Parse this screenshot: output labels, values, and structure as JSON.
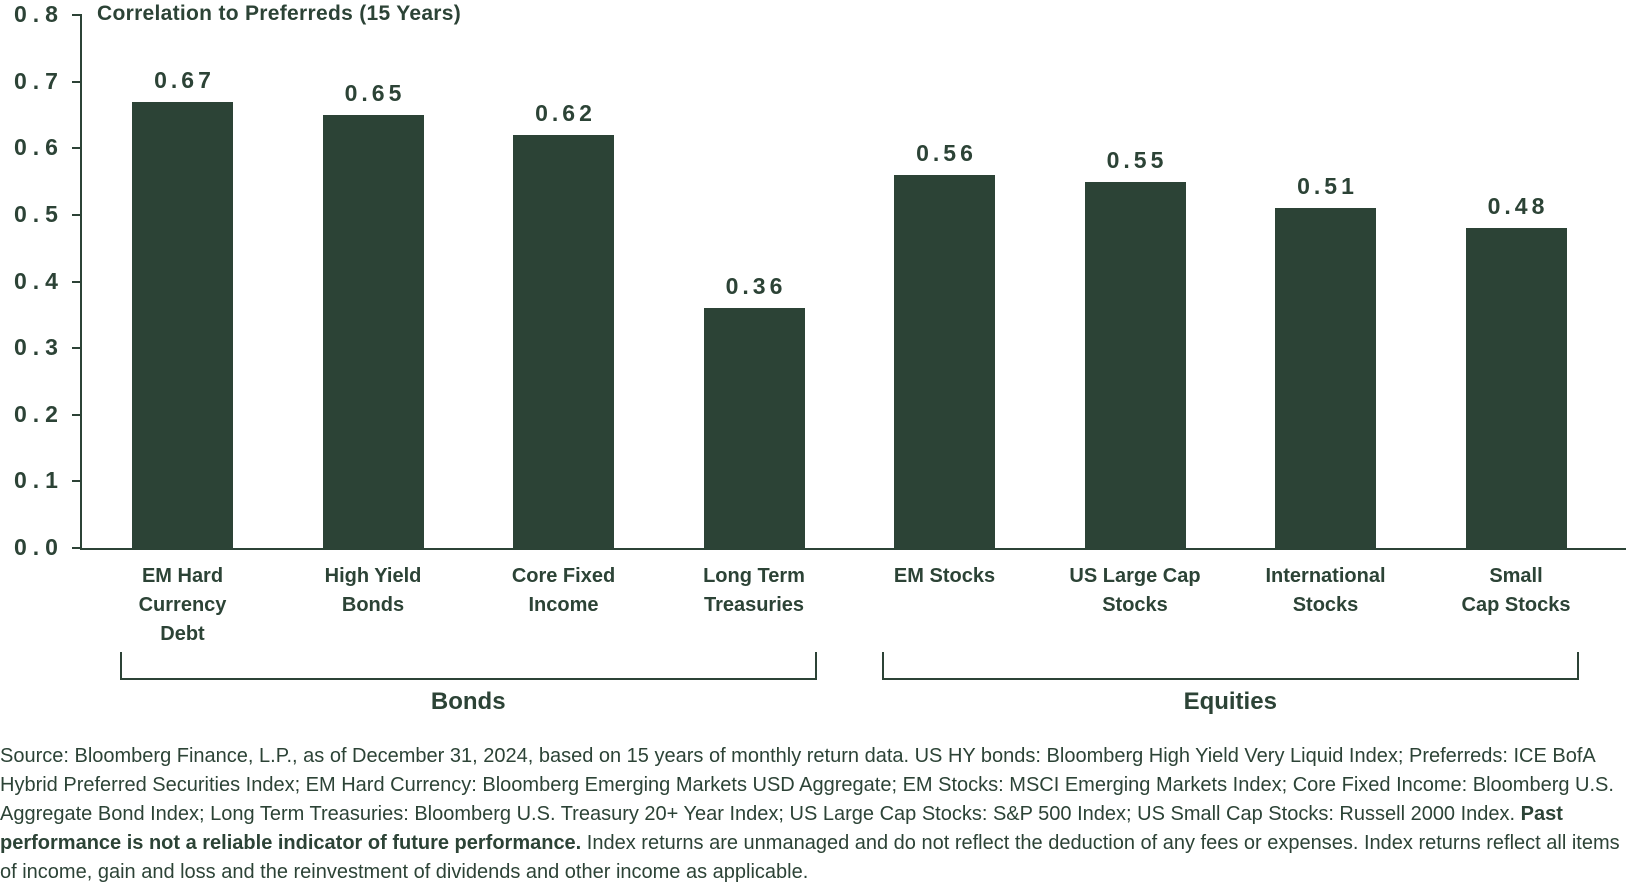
{
  "chart_data": {
    "type": "bar",
    "title": "Correlation to Preferreds (15 Years)",
    "categories": [
      {
        "name": "EM Hard Currency Debt",
        "lines": [
          "EM Hard",
          "Currency",
          "Debt"
        ]
      },
      {
        "name": "High Yield Bonds",
        "lines": [
          "High Yield",
          "Bonds"
        ]
      },
      {
        "name": "Core Fixed Income",
        "lines": [
          "Core Fixed",
          "Income"
        ]
      },
      {
        "name": "Long Term Treasuries",
        "lines": [
          "Long Term",
          "Treasuries"
        ]
      },
      {
        "name": "EM Stocks",
        "lines": [
          "EM Stocks"
        ]
      },
      {
        "name": "US Large Cap Stocks",
        "lines": [
          "US Large Cap",
          "Stocks"
        ]
      },
      {
        "name": "International Stocks",
        "lines": [
          "International",
          "Stocks"
        ]
      },
      {
        "name": "Small Cap Stocks",
        "lines": [
          "Small",
          "Cap Stocks"
        ]
      }
    ],
    "values": [
      0.67,
      0.65,
      0.62,
      0.36,
      0.56,
      0.55,
      0.51,
      0.48
    ],
    "value_labels": [
      "0.67",
      "0.65",
      "0.62",
      "0.36",
      "0.56",
      "0.55",
      "0.51",
      "0.48"
    ],
    "groups": [
      {
        "label": "Bonds",
        "start": 0,
        "end": 3
      },
      {
        "label": "Equities",
        "start": 4,
        "end": 7
      }
    ],
    "ylim": [
      0,
      0.8
    ],
    "ytick_labels": [
      "0.0",
      "0.1",
      "0.2",
      "0.3",
      "0.4",
      "0.5",
      "0.6",
      "0.7",
      "0.8"
    ],
    "grid": false,
    "legend": "none",
    "xlabel": "",
    "ylabel": "",
    "colors": {
      "bar": "#2c4336",
      "text": "#2c4336",
      "axis": "#2c4336",
      "background": "#ffffff"
    }
  },
  "footnote": {
    "part1": "Source: Bloomberg Finance, L.P., as of December 31, 2024, based on 15 years of monthly return data. US HY bonds: Bloomberg High Yield Very Liquid Index; Preferreds: ICE BofA Hybrid Preferred Securities Index; EM Hard Currency: Bloomberg Emerging Markets USD Aggregate; EM Stocks: MSCI Emerging Markets Index; Core Fixed Income: Bloomberg U.S. Aggregate Bond Index; Long Term Treasuries: Bloomberg U.S. Treasury 20+ Year Index; US Large Cap Stocks: S&P 500 Index; US Small Cap Stocks: Russell 2000 Index. ",
    "bold": "Past performance is not a reliable indicator of future performance.",
    "part2": " Index returns are unmanaged and do not reflect the deduction of any fees or expenses. Index returns reflect all items of income, gain and loss and the reinvestment of dividends and other income as applicable."
  }
}
